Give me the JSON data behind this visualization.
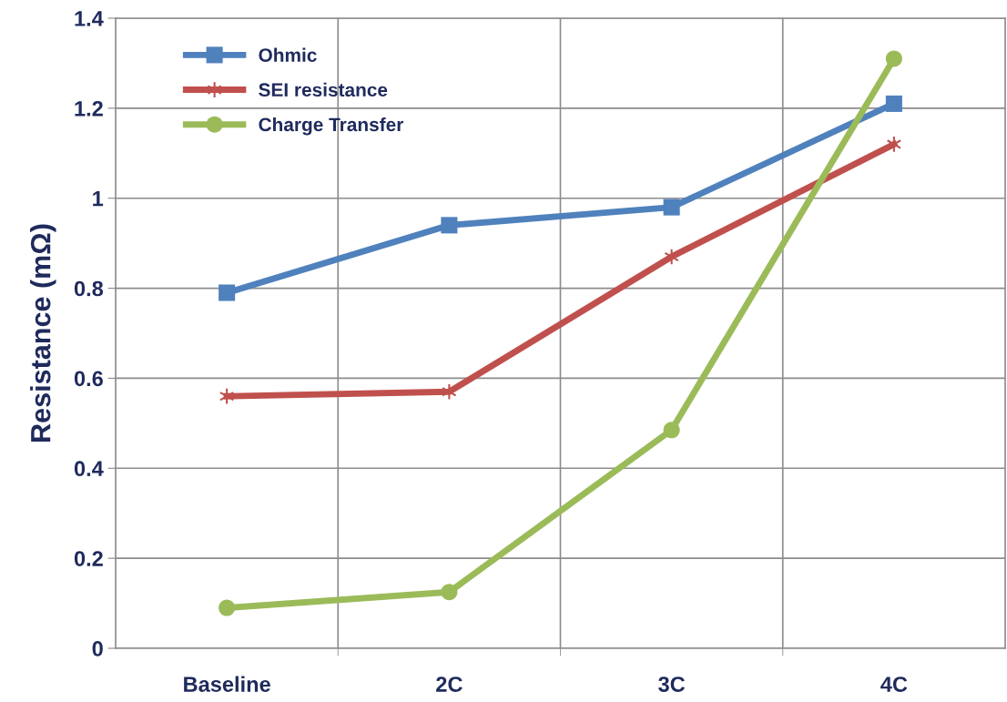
{
  "chart_data": {
    "type": "line",
    "ylabel": "Resistance (mΩ)",
    "categories": [
      "Baseline",
      "2C",
      "3C",
      "4C"
    ],
    "series": [
      {
        "name": "Ohmic",
        "color": "#4f81bd",
        "marker": "square",
        "values": [
          0.79,
          0.94,
          0.98,
          1.21
        ]
      },
      {
        "name": "SEI resistance",
        "color": "#c0504d",
        "marker": "cross",
        "values": [
          0.56,
          0.57,
          0.87,
          1.12
        ]
      },
      {
        "name": "Charge Transfer",
        "color": "#9bbb59",
        "marker": "circle",
        "values": [
          0.09,
          0.125,
          0.485,
          1.31
        ]
      }
    ],
    "ylim": [
      0,
      1.4
    ],
    "yticks": [
      0,
      0.2,
      0.4,
      0.6,
      0.8,
      1,
      1.2,
      1.4
    ],
    "grid": true,
    "legend": "top left",
    "line_style": "solid"
  }
}
